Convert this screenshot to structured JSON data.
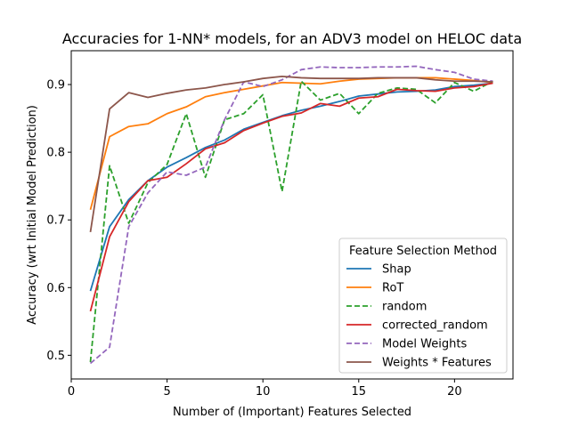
{
  "chart_data": {
    "type": "line",
    "title": "Accuracies for 1-NN* models, for an ADV3 model on HELOC data",
    "xlabel": "Number of (Important) Features Selected",
    "ylabel": "Accuracy (wrt Initial Model Prediction)",
    "xlim": [
      0.0,
      23.05
    ],
    "ylim": [
      0.465,
      0.95
    ],
    "xticks": [
      0,
      5,
      10,
      15,
      20
    ],
    "yticks": [
      0.5,
      0.6,
      0.7,
      0.8,
      0.9
    ],
    "xtick_labels": [
      "0",
      "5",
      "10",
      "15",
      "20"
    ],
    "ytick_labels": [
      "0.5",
      "0.6",
      "0.7",
      "0.8",
      "0.9"
    ],
    "grid": false,
    "legend": {
      "title": "Feature Selection Method",
      "placement": "lower-right"
    },
    "x": [
      1,
      2,
      3,
      4,
      5,
      6,
      7,
      8,
      9,
      10,
      11,
      12,
      13,
      14,
      15,
      16,
      17,
      18,
      19,
      20,
      21,
      22
    ],
    "series": [
      {
        "name": "Shap",
        "color": "#1f77b4",
        "dash": "solid",
        "values": [
          0.595,
          0.69,
          0.73,
          0.758,
          0.778,
          0.792,
          0.807,
          0.818,
          0.834,
          0.844,
          0.854,
          0.862,
          0.868,
          0.875,
          0.883,
          0.886,
          0.889,
          0.89,
          0.892,
          0.897,
          0.899,
          0.902
        ]
      },
      {
        "name": "RoT",
        "color": "#ff7f0e",
        "dash": "solid",
        "values": [
          0.715,
          0.823,
          0.838,
          0.842,
          0.857,
          0.867,
          0.882,
          0.888,
          0.893,
          0.898,
          0.903,
          0.902,
          0.901,
          0.905,
          0.908,
          0.909,
          0.91,
          0.91,
          0.91,
          0.908,
          0.906,
          0.903
        ]
      },
      {
        "name": "random",
        "color": "#2ca02c",
        "dash": "dashed",
        "values": [
          0.49,
          0.78,
          0.695,
          0.755,
          0.782,
          0.857,
          0.763,
          0.848,
          0.857,
          0.885,
          0.742,
          0.905,
          0.877,
          0.887,
          0.857,
          0.887,
          0.895,
          0.893,
          0.873,
          0.903,
          0.89,
          0.905
        ]
      },
      {
        "name": "corrected_random",
        "color": "#d62728",
        "dash": "solid",
        "values": [
          0.565,
          0.675,
          0.727,
          0.758,
          0.763,
          0.783,
          0.805,
          0.814,
          0.832,
          0.843,
          0.853,
          0.858,
          0.872,
          0.868,
          0.88,
          0.882,
          0.893,
          0.891,
          0.89,
          0.895,
          0.897,
          0.902
        ]
      },
      {
        "name": "Model Weights",
        "color": "#9467bd",
        "dash": "dashed",
        "values": [
          0.488,
          0.512,
          0.69,
          0.74,
          0.771,
          0.766,
          0.778,
          0.848,
          0.904,
          0.897,
          0.907,
          0.922,
          0.926,
          0.925,
          0.925,
          0.926,
          0.926,
          0.927,
          0.922,
          0.918,
          0.908,
          0.905
        ]
      },
      {
        "name": "Weights * Features",
        "color": "#8c564b",
        "dash": "solid",
        "values": [
          0.682,
          0.864,
          0.888,
          0.881,
          0.887,
          0.892,
          0.895,
          0.9,
          0.904,
          0.909,
          0.912,
          0.91,
          0.909,
          0.909,
          0.909,
          0.91,
          0.91,
          0.91,
          0.907,
          0.905,
          0.905,
          0.904
        ]
      }
    ]
  }
}
